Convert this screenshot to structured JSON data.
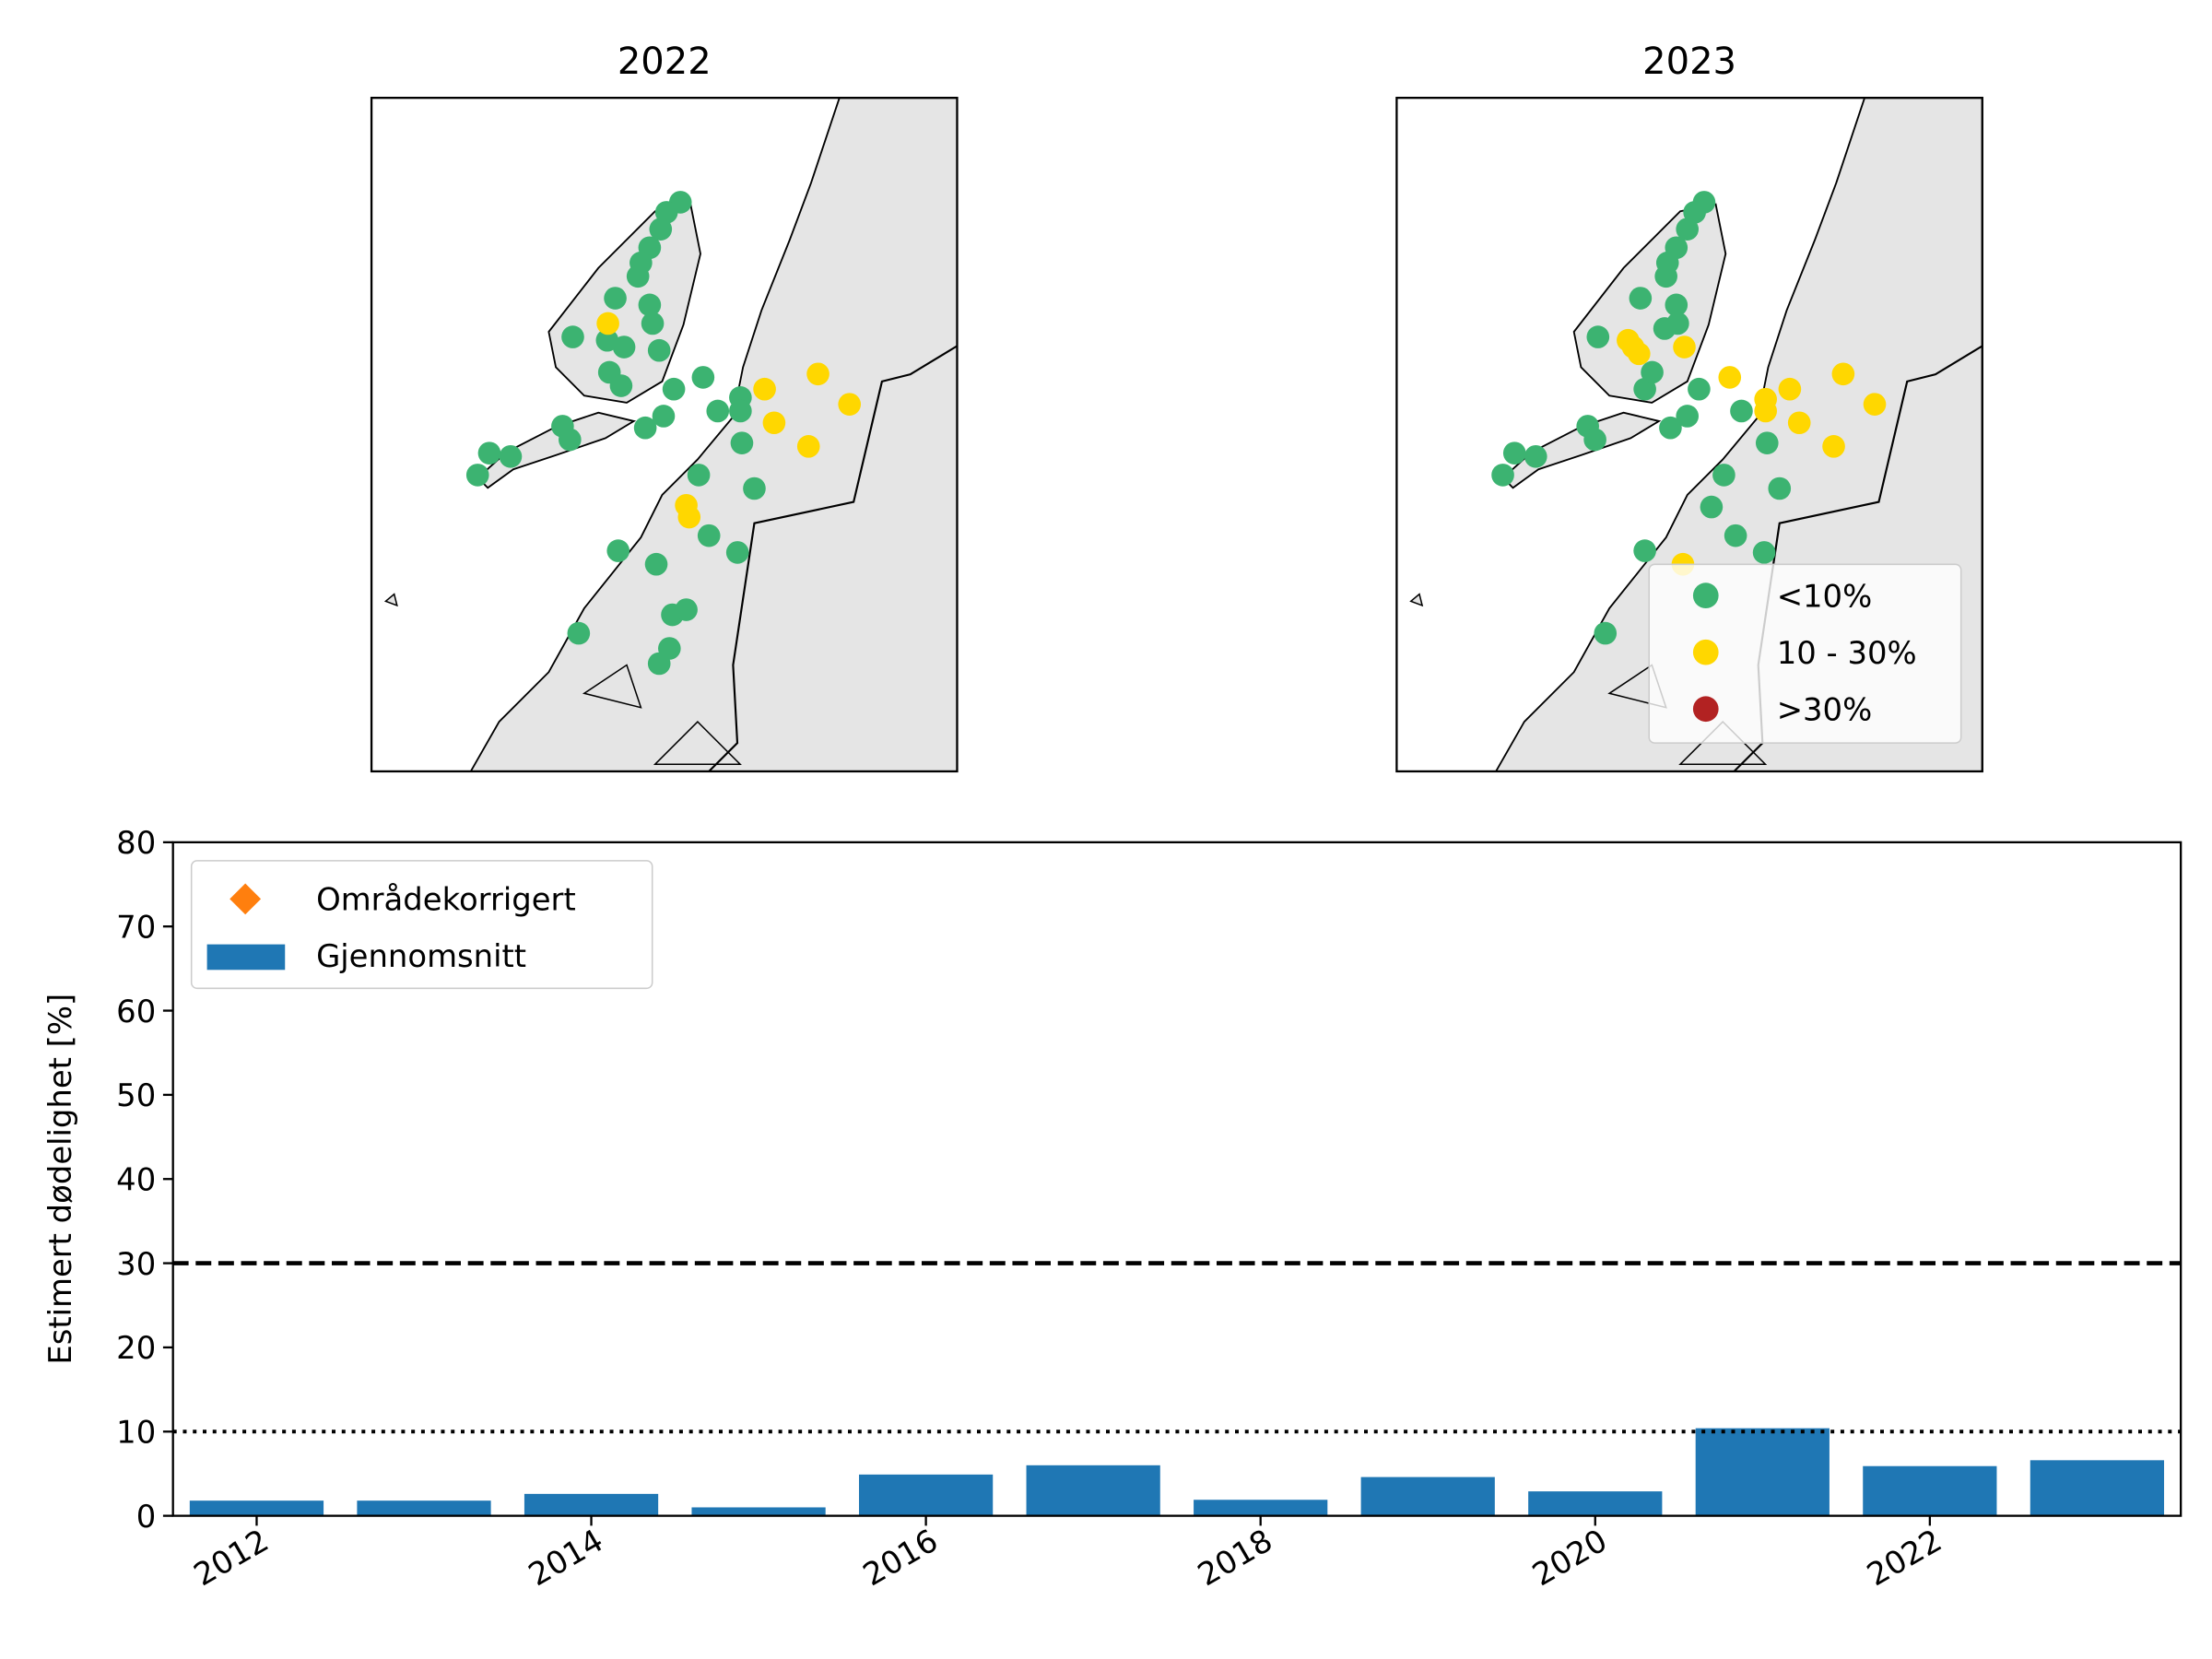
{
  "chart_data": [
    {
      "type": "map",
      "title": "2022",
      "xlim": [
        12,
        20
      ],
      "ylim": [
        66,
        70
      ],
      "series": [
        {
          "color": "#3cb371",
          "x": [
            16.22,
            16.03,
            15.95,
            15.8,
            15.68,
            15.64,
            15.33,
            15.8,
            15.84,
            14.75,
            15.22,
            15.45,
            15.93,
            15.25,
            15.41,
            16.13,
            16.53,
            14.61,
            14.71,
            15.74,
            15.99,
            16.73,
            17.04,
            17.04,
            17.06,
            16.47,
            17.23,
            13.61,
            13.45,
            13.9,
            15.37,
            15.89,
            16.61,
            17.0,
            14.83,
            16.11,
            16.3,
            16.07,
            15.93
          ],
          "y": [
            69.38,
            69.32,
            69.22,
            69.11,
            69.02,
            68.94,
            68.81,
            68.77,
            68.66,
            68.58,
            68.56,
            68.52,
            68.5,
            68.37,
            68.29,
            68.27,
            68.34,
            68.05,
            67.97,
            68.04,
            68.11,
            68.14,
            68.22,
            68.14,
            67.95,
            67.76,
            67.68,
            67.89,
            67.76,
            67.87,
            67.31,
            67.23,
            67.4,
            67.3,
            66.82,
            66.93,
            66.96,
            66.73,
            66.64
          ]
        },
        {
          "color": "#ffd700",
          "x": [
            15.23,
            16.3,
            16.34,
            17.37,
            18.1,
            18.53,
            17.5,
            17.97
          ],
          "y": [
            68.66,
            67.58,
            67.51,
            68.27,
            68.36,
            68.18,
            68.07,
            67.93
          ]
        },
        {
          "color": "#b22222",
          "x": [],
          "y": []
        }
      ]
    },
    {
      "type": "map",
      "title": "2023",
      "xlim": [
        12,
        20
      ],
      "ylim": [
        66,
        70
      ],
      "legend": "lower right",
      "series": [
        {
          "name": "<10%",
          "color": "#3cb371",
          "x": [
            16.2,
            16.07,
            15.97,
            15.82,
            15.7,
            15.68,
            15.33,
            15.82,
            15.84,
            14.75,
            15.66,
            15.39,
            16.13,
            14.61,
            14.71,
            15.74,
            15.97,
            16.71,
            17.06,
            16.47,
            17.23,
            13.61,
            13.45,
            13.9,
            15.39,
            16.3,
            16.63,
            17.02,
            14.85,
            15.49
          ],
          "y": [
            69.38,
            69.32,
            69.22,
            69.11,
            69.02,
            68.94,
            68.81,
            68.77,
            68.66,
            68.58,
            68.63,
            68.27,
            68.27,
            68.05,
            67.97,
            68.04,
            68.11,
            68.14,
            67.95,
            67.76,
            67.68,
            67.89,
            67.76,
            67.87,
            67.31,
            67.57,
            67.4,
            67.3,
            66.82,
            68.37
          ]
        },
        {
          "name": "10 - 30%",
          "color": "#ffd700",
          "x": [
            15.16,
            15.23,
            15.31,
            15.93,
            16.55,
            17.04,
            17.04,
            17.37,
            18.1,
            18.53,
            17.5,
            17.97,
            15.91
          ],
          "y": [
            68.56,
            68.52,
            68.48,
            68.52,
            68.34,
            68.21,
            68.14,
            68.27,
            68.36,
            68.18,
            68.07,
            67.93,
            67.23
          ]
        },
        {
          "name": ">30%",
          "color": "#b22222",
          "x": [],
          "y": []
        }
      ]
    },
    {
      "type": "bar",
      "ylabel": "Estimert dødelighet [%]",
      "x": [
        2012,
        2013,
        2014,
        2015,
        2016,
        2017,
        2018,
        2019,
        2020,
        2021,
        2022,
        2023
      ],
      "xlim": [
        2011.5,
        2023.5
      ],
      "xticks": [
        2012,
        2014,
        2016,
        2018,
        2020,
        2022
      ],
      "ylim": [
        0,
        80
      ],
      "yticks": [
        0,
        10,
        20,
        30,
        40,
        50,
        60,
        70,
        80
      ],
      "legend": "upper left",
      "reference_lines": [
        {
          "value": 30,
          "style": "dashed"
        },
        {
          "value": 10,
          "style": "dotted"
        }
      ],
      "series": [
        {
          "name": "Områdekorrigert",
          "color": "#ff7f0e",
          "marker": "diamond",
          "values": [
            null,
            null,
            null,
            null,
            null,
            null,
            null,
            null,
            null,
            null,
            null,
            null
          ]
        },
        {
          "name": "Gjennomsnitt",
          "color": "#1f77b4",
          "values": [
            1.8,
            1.8,
            2.6,
            1.0,
            4.9,
            6.0,
            1.9,
            4.6,
            2.9,
            10.4,
            5.9,
            6.6
          ]
        }
      ]
    }
  ]
}
